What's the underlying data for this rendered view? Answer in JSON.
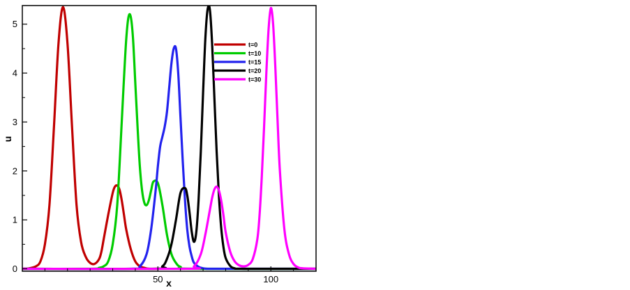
{
  "chart_data": {
    "type": "line",
    "title": "",
    "xlabel": "x",
    "ylabel": "u",
    "xlim": [
      -10,
      120
    ],
    "ylim": [
      -0.05,
      5.38
    ],
    "x_ticks": [
      50,
      100
    ],
    "y_ticks": [
      0,
      1,
      2,
      3,
      4,
      5
    ],
    "grid": false,
    "legend_position": "top-center",
    "series": [
      {
        "name": "t=0",
        "color": "#c00000",
        "x": [
          -10,
          -7,
          -4,
          -2,
          0,
          2,
          4,
          6,
          8,
          10,
          12,
          14,
          16,
          18,
          20,
          22,
          24,
          25,
          26,
          28,
          30,
          31,
          32,
          33,
          34,
          35,
          36,
          38,
          40,
          42,
          44,
          46,
          50
        ],
        "y": [
          0.0,
          0.01,
          0.05,
          0.15,
          0.5,
          1.3,
          2.9,
          4.6,
          5.35,
          4.6,
          2.9,
          1.3,
          0.55,
          0.25,
          0.12,
          0.1,
          0.2,
          0.35,
          0.6,
          1.1,
          1.55,
          1.68,
          1.7,
          1.62,
          1.4,
          1.1,
          0.8,
          0.4,
          0.15,
          0.05,
          0.02,
          0.0,
          0.0
        ]
      },
      {
        "name": "t=10",
        "color": "#00cc00",
        "x": [
          -10,
          20,
          24,
          26,
          28,
          30,
          32,
          34,
          35,
          36,
          37,
          38,
          39,
          40,
          41,
          42,
          43,
          44,
          45,
          46,
          47,
          48,
          50,
          52,
          54,
          56,
          58,
          60,
          65,
          120
        ],
        "y": [
          0.0,
          0.0,
          0.02,
          0.05,
          0.15,
          0.5,
          1.3,
          3.0,
          3.9,
          4.7,
          5.15,
          5.15,
          4.7,
          3.8,
          2.9,
          2.1,
          1.6,
          1.35,
          1.3,
          1.4,
          1.6,
          1.78,
          1.75,
          1.3,
          0.7,
          0.3,
          0.12,
          0.04,
          0.0,
          0.0
        ]
      },
      {
        "name": "t=15",
        "color": "#2222ee",
        "x": [
          -10,
          38,
          42,
          45,
          47,
          49,
          50,
          51,
          52,
          53,
          54,
          55,
          56,
          57,
          58,
          59,
          60,
          61,
          62,
          63,
          64,
          65,
          66,
          68,
          70,
          72,
          76,
          120
        ],
        "y": [
          0.0,
          0.0,
          0.05,
          0.3,
          0.8,
          1.6,
          2.1,
          2.5,
          2.7,
          2.9,
          3.2,
          3.7,
          4.2,
          4.5,
          4.5,
          4.0,
          3.1,
          2.2,
          1.4,
          0.8,
          0.45,
          0.25,
          0.12,
          0.04,
          0.01,
          0.0,
          0.0,
          0.0
        ]
      },
      {
        "name": "t=20",
        "color": "#000000",
        "x": [
          -10,
          48,
          52,
          54,
          56,
          58,
          60,
          62,
          63,
          64,
          65,
          66,
          67,
          68,
          69,
          70,
          71,
          72,
          73,
          74,
          75,
          76,
          77,
          78,
          79,
          80,
          82,
          84,
          88,
          120
        ],
        "y": [
          0.0,
          0.0,
          0.05,
          0.2,
          0.5,
          1.0,
          1.55,
          1.65,
          1.5,
          1.15,
          0.75,
          0.55,
          0.75,
          1.4,
          2.4,
          3.6,
          4.7,
          5.3,
          5.3,
          4.6,
          3.5,
          2.4,
          1.5,
          0.85,
          0.45,
          0.22,
          0.06,
          0.01,
          0.0,
          0.0
        ]
      },
      {
        "name": "t=30",
        "color": "#ff00ff",
        "x": [
          -10,
          62,
          66,
          69,
          71,
          73,
          74,
          75,
          76,
          77,
          78,
          79,
          80,
          82,
          84,
          86,
          88,
          90,
          92,
          94,
          95,
          96,
          97,
          98,
          99,
          100,
          101,
          102,
          103,
          104,
          106,
          108,
          110,
          112,
          114,
          120
        ],
        "y": [
          0.0,
          0.0,
          0.05,
          0.3,
          0.7,
          1.2,
          1.45,
          1.62,
          1.68,
          1.6,
          1.4,
          1.1,
          0.75,
          0.35,
          0.15,
          0.07,
          0.05,
          0.08,
          0.2,
          0.6,
          1.1,
          1.9,
          2.9,
          4.0,
          4.9,
          5.33,
          5.0,
          4.1,
          3.0,
          2.0,
          0.8,
          0.3,
          0.1,
          0.03,
          0.01,
          0.0
        ]
      }
    ]
  }
}
